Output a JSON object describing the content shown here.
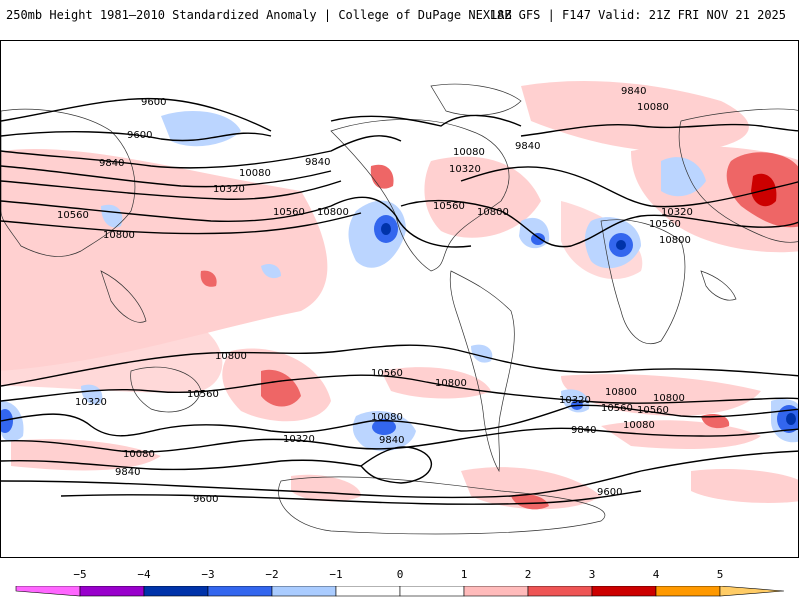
{
  "header": {
    "title": "250mb Height 1981–2010 Standardized Anomaly | College of DuPage NEXLAB",
    "run_info": "18Z GFS | F147 Valid: 21Z FRI NOV 21 2025"
  },
  "map": {
    "contour_labels": [
      {
        "id": "c1",
        "text": "9600"
      },
      {
        "id": "c2",
        "text": "9600"
      },
      {
        "id": "c3",
        "text": "9840"
      },
      {
        "id": "c4",
        "text": "9840"
      },
      {
        "id": "c5",
        "text": "10080"
      },
      {
        "id": "c6",
        "text": "10320"
      },
      {
        "id": "c7",
        "text": "10560"
      },
      {
        "id": "c8",
        "text": "10800"
      },
      {
        "id": "c9",
        "text": "10560"
      },
      {
        "id": "c10",
        "text": "10800"
      },
      {
        "id": "c11",
        "text": "10800"
      },
      {
        "id": "c12",
        "text": "9840"
      },
      {
        "id": "c13",
        "text": "10080"
      },
      {
        "id": "c14",
        "text": "9840"
      },
      {
        "id": "c15",
        "text": "10080"
      },
      {
        "id": "c16",
        "text": "10320"
      },
      {
        "id": "c17",
        "text": "10560"
      },
      {
        "id": "c18",
        "text": "10800"
      },
      {
        "id": "c19",
        "text": "10320"
      },
      {
        "id": "c20",
        "text": "10560"
      },
      {
        "id": "c21",
        "text": "10800"
      },
      {
        "id": "c22",
        "text": "10800"
      },
      {
        "id": "c23",
        "text": "10560"
      },
      {
        "id": "c24",
        "text": "10560"
      },
      {
        "id": "c25",
        "text": "10800"
      },
      {
        "id": "c26",
        "text": "10320"
      },
      {
        "id": "c27",
        "text": "10560"
      },
      {
        "id": "c28",
        "text": "10320"
      },
      {
        "id": "c29",
        "text": "10080"
      },
      {
        "id": "c30",
        "text": "9840"
      },
      {
        "id": "c31",
        "text": "10320"
      },
      {
        "id": "c32",
        "text": "10560"
      },
      {
        "id": "c33",
        "text": "10800"
      },
      {
        "id": "c34",
        "text": "10080"
      },
      {
        "id": "c35",
        "text": "9840"
      },
      {
        "id": "c36",
        "text": "10080"
      },
      {
        "id": "c37",
        "text": "9840"
      },
      {
        "id": "c38",
        "text": "9600"
      },
      {
        "id": "c39",
        "text": "9600"
      }
    ]
  },
  "colorbar": {
    "tick_labels": [
      "−5",
      "−4",
      "−3",
      "−2",
      "−1",
      "0",
      "1",
      "2",
      "3",
      "4",
      "5"
    ],
    "colors": [
      "#ff66ff",
      "#9900cc",
      "#0033aa",
      "#3366ee",
      "#aaccff",
      "#ffffff",
      "#ffffff",
      "#ffbbbb",
      "#ee5555",
      "#cc0000",
      "#ff9900",
      "#ffcc66"
    ]
  }
}
